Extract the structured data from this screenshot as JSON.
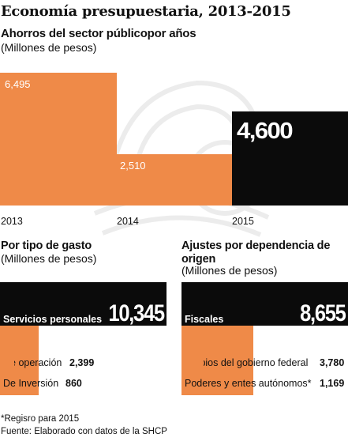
{
  "title": "Economía presupuestaria, 2013-2015",
  "colors": {
    "orange": "#ef8a48",
    "black": "#0b0b0b",
    "white": "#ffffff",
    "watermark": "#ececec"
  },
  "chart_data": [
    {
      "type": "bar",
      "title": "Ahorros del sector públicopor años",
      "ylabel": "(Millones de pesos)",
      "categories": [
        "2013",
        "2014",
        "2015"
      ],
      "values": [
        6495,
        2510,
        4600
      ],
      "value_labels": [
        "6,495",
        "2,510",
        "4,600"
      ],
      "bar_colors": [
        "#ef8a48",
        "#ef8a48",
        "#0b0b0b"
      ],
      "grid": false
    },
    {
      "type": "bar",
      "orientation": "horizontal",
      "title": "Por tipo de gasto",
      "unit": "(Millones de pesos)",
      "categories": [
        "Servicios personales",
        "De operación",
        "De Inversión"
      ],
      "values": [
        10345,
        2399,
        860
      ],
      "value_labels": [
        "10,345",
        "2,399",
        "860"
      ],
      "bar_colors": [
        "#0b0b0b",
        "#ef8a48",
        "#ef8a48"
      ]
    },
    {
      "type": "bar",
      "orientation": "horizontal",
      "title": "Ajustes por dependencia de origen",
      "unit": "(Millones de pesos)",
      "categories": [
        "Fiscales",
        "Propios del gobierno federal",
        "Poderes y entes autónomos*"
      ],
      "values": [
        8655,
        3780,
        1169
      ],
      "value_labels": [
        "8,655",
        "3,780",
        "1,169"
      ],
      "bar_colors": [
        "#0b0b0b",
        "#ef8a48",
        "#ef8a48"
      ]
    }
  ],
  "footnote": "*Regisro para 2015",
  "source": "Fuente: Elaborado con datos de la SHCP"
}
